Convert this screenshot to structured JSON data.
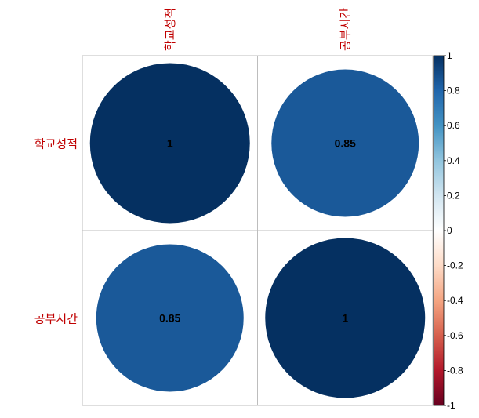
{
  "chart_data": {
    "type": "heatmap",
    "subtype": "correlation-circle",
    "variables": [
      "학교성적",
      "공부시간"
    ],
    "matrix": [
      [
        1,
        0.85
      ],
      [
        0.85,
        1
      ]
    ],
    "value_labels": [
      [
        "1",
        "0.85"
      ],
      [
        "0.85",
        "1"
      ]
    ],
    "colorbar": {
      "range": [
        -1,
        1
      ],
      "ticks": [
        "1",
        "0.8",
        "0.6",
        "0.4",
        "0.2",
        "0",
        "-0.2",
        "-0.4",
        "-0.6",
        "-0.8",
        "-1"
      ],
      "colors": [
        "#67001f",
        "#b2182b",
        "#d6604d",
        "#f4a582",
        "#fddbc7",
        "#ffffff",
        "#d1e5f0",
        "#92c5de",
        "#4393c3",
        "#2166ac",
        "#053061"
      ]
    },
    "label_color": "#c00000",
    "grid": true
  }
}
